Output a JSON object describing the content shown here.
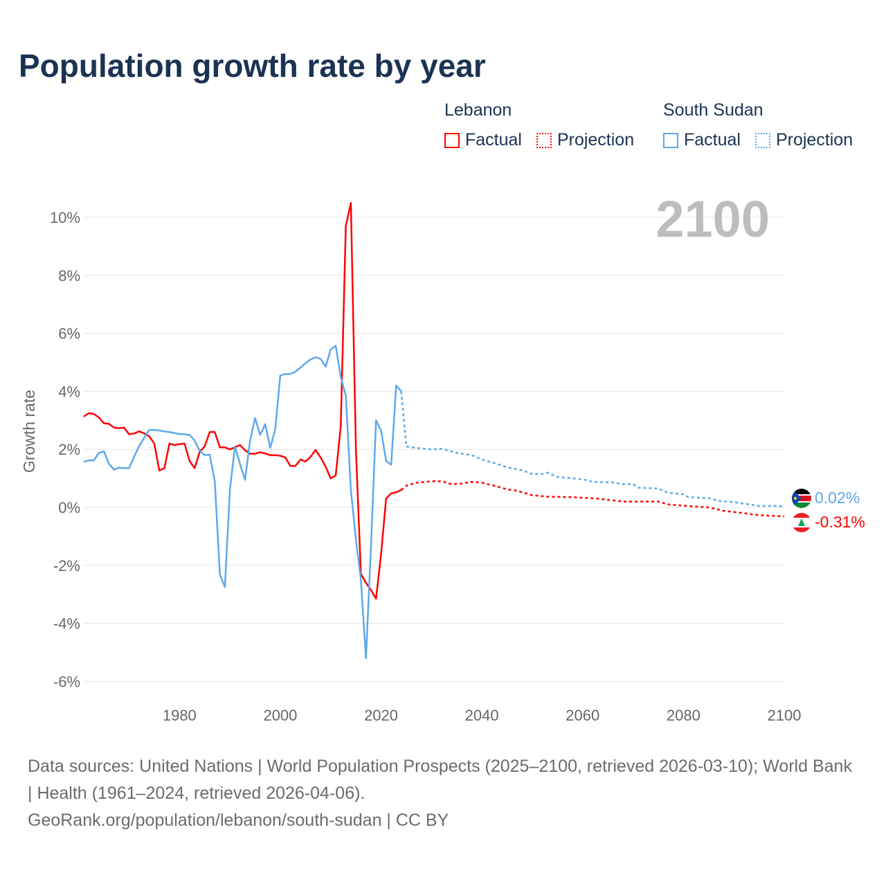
{
  "title": "Population growth rate by year",
  "legend": [
    {
      "country": "Lebanon",
      "factual": "Factual",
      "projection": "Projection",
      "color": "#ff0000"
    },
    {
      "country": "South Sudan",
      "factual": "Factual",
      "projection": "Projection",
      "color": "#5ca8ec"
    }
  ],
  "year_label": "2100",
  "end_labels": {
    "south_sudan": "0.02%",
    "lebanon": "-0.31%"
  },
  "footer": {
    "sources": "Data sources: United Nations | World Population Prospects (2025–2100, retrieved 2026-03-10); World Bank | Health (1961–2024, retrieved 2026-04-06).",
    "credit": "GeoRank.org/population/lebanon/south-sudan | CC BY"
  },
  "chart_data": {
    "type": "line",
    "title": "Population growth rate by year",
    "ylabel": "Growth rate",
    "xlabel": "",
    "xlim": [
      1961,
      2100
    ],
    "ylim": [
      -6.5,
      10.5
    ],
    "yticks": [
      -6,
      -4,
      -2,
      0,
      2,
      4,
      6,
      8,
      10
    ],
    "ytick_labels": [
      "-6%",
      "-4%",
      "-2%",
      "0%",
      "2%",
      "4%",
      "6%",
      "8%",
      "10%"
    ],
    "xticks": [
      1980,
      2000,
      2020,
      2040,
      2060,
      2080,
      2100
    ],
    "xtick_labels": [
      "1980",
      "2000",
      "2020",
      "2040",
      "2060",
      "2080",
      "2100"
    ],
    "grid": true,
    "series": [
      {
        "name": "Lebanon Factual",
        "start_year": 1961,
        "style": "solid",
        "color": "#ff0000",
        "values": [
          3.13,
          3.25,
          3.22,
          3.1,
          2.9,
          2.88,
          2.75,
          2.73,
          2.75,
          2.52,
          2.55,
          2.62,
          2.55,
          2.45,
          2.2,
          1.27,
          1.35,
          2.2,
          2.15,
          2.18,
          2.2,
          1.6,
          1.35,
          1.92,
          2.1,
          2.6,
          2.6,
          2.07,
          2.07,
          2.0,
          2.07,
          2.15,
          1.97,
          1.85,
          1.85,
          1.9,
          1.86,
          1.8,
          1.8,
          1.78,
          1.72,
          1.43,
          1.43,
          1.65,
          1.58,
          1.74,
          1.98,
          1.72,
          1.4,
          1.0,
          1.1,
          2.8,
          9.7,
          10.5,
          2.0,
          -2.3,
          -2.6,
          -2.85,
          -3.15,
          -1.6,
          0.3,
          0.48,
          0.52,
          0.6
        ]
      },
      {
        "name": "Lebanon Projection",
        "style": "dashed",
        "color": "#ff0000",
        "points": [
          [
            2024,
            0.6
          ],
          [
            2025,
            0.75
          ],
          [
            2027,
            0.85
          ],
          [
            2030,
            0.9
          ],
          [
            2032,
            0.9
          ],
          [
            2034,
            0.8
          ],
          [
            2036,
            0.82
          ],
          [
            2038,
            0.88
          ],
          [
            2040,
            0.85
          ],
          [
            2043,
            0.72
          ],
          [
            2045,
            0.62
          ],
          [
            2047,
            0.57
          ],
          [
            2050,
            0.42
          ],
          [
            2053,
            0.37
          ],
          [
            2058,
            0.35
          ],
          [
            2063,
            0.3
          ],
          [
            2068,
            0.2
          ],
          [
            2070,
            0.2
          ],
          [
            2075,
            0.2
          ],
          [
            2077,
            0.1
          ],
          [
            2082,
            0.03
          ],
          [
            2085,
            0.0
          ],
          [
            2088,
            -0.12
          ],
          [
            2092,
            -0.2
          ],
          [
            2095,
            -0.27
          ],
          [
            2099,
            -0.3
          ],
          [
            2100,
            -0.31
          ]
        ]
      },
      {
        "name": "South Sudan Factual",
        "start_year": 1961,
        "style": "solid",
        "color": "#5ca8ec",
        "values": [
          1.57,
          1.62,
          1.62,
          1.88,
          1.93,
          1.5,
          1.3,
          1.37,
          1.35,
          1.35,
          1.75,
          2.12,
          2.4,
          2.67,
          2.67,
          2.65,
          2.62,
          2.6,
          2.56,
          2.53,
          2.52,
          2.5,
          2.3,
          1.95,
          1.8,
          1.82,
          0.9,
          -2.3,
          -2.75,
          0.6,
          2.1,
          1.5,
          0.95,
          2.3,
          3.08,
          2.5,
          2.87,
          2.05,
          2.7,
          4.55,
          4.6,
          4.6,
          4.68,
          4.82,
          4.97,
          5.1,
          5.18,
          5.12,
          4.85,
          5.45,
          5.57,
          4.5,
          3.85,
          0.6,
          -1.1,
          -2.5,
          -5.2,
          -1.3,
          3.0,
          2.65,
          1.6,
          1.47,
          4.2,
          4.0
        ]
      },
      {
        "name": "South Sudan Projection",
        "style": "dashed",
        "color": "#5ca8ec",
        "points": [
          [
            2024,
            4.0
          ],
          [
            2025,
            2.1
          ],
          [
            2027,
            2.05
          ],
          [
            2030,
            2.0
          ],
          [
            2032,
            2.02
          ],
          [
            2035,
            1.88
          ],
          [
            2038,
            1.8
          ],
          [
            2040,
            1.65
          ],
          [
            2043,
            1.5
          ],
          [
            2045,
            1.38
          ],
          [
            2048,
            1.28
          ],
          [
            2050,
            1.15
          ],
          [
            2052,
            1.15
          ],
          [
            2053,
            1.2
          ],
          [
            2055,
            1.05
          ],
          [
            2060,
            0.97
          ],
          [
            2062,
            0.88
          ],
          [
            2066,
            0.86
          ],
          [
            2068,
            0.8
          ],
          [
            2070,
            0.8
          ],
          [
            2071,
            0.68
          ],
          [
            2075,
            0.65
          ],
          [
            2077,
            0.5
          ],
          [
            2080,
            0.45
          ],
          [
            2081,
            0.35
          ],
          [
            2085,
            0.32
          ],
          [
            2087,
            0.22
          ],
          [
            2090,
            0.18
          ],
          [
            2095,
            0.05
          ],
          [
            2099,
            0.05
          ],
          [
            2100,
            0.02
          ]
        ]
      }
    ]
  }
}
